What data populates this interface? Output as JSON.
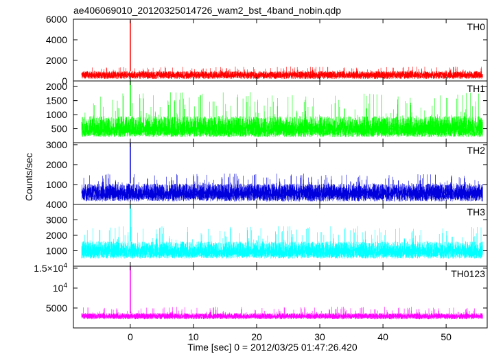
{
  "title": "ae406069010_20120325014726_wam2_bst_4band_nobin.qdp",
  "ylabel": "Counts/sec",
  "xlabel": "Time [sec] 0 = 2012/03/25 01:47:26.420",
  "chart_data": {
    "type": "line",
    "title": "ae406069010_20120325014726_wam2_bst_4band_nobin.qdp",
    "xlabel": "Time [sec] 0 = 2012/03/25 01:47:26.420",
    "ylabel": "Counts/sec",
    "xlim": [
      -9,
      56.5
    ],
    "x_ticks": [
      0,
      10,
      20,
      30,
      40,
      50
    ],
    "x_tick_labels": [
      "0",
      "10",
      "20",
      "30",
      "40",
      "50"
    ],
    "data_range": [
      -7.7,
      55.8
    ],
    "burst_time": 0,
    "grid": false,
    "panels": [
      {
        "name": "TH0",
        "color": "#ff0000",
        "ylim": [
          0,
          6000
        ],
        "y_ticks": [
          0,
          2000,
          4000,
          6000
        ],
        "y_tick_labels": [
          "0",
          "2000",
          "4000",
          "6000"
        ],
        "noise": {
          "low": 200,
          "typ_low": 450,
          "typ_high": 950,
          "high": 1400
        },
        "burst_peak": 5900
      },
      {
        "name": "TH1",
        "color": "#00ff00",
        "ylim": [
          0,
          2200
        ],
        "y_ticks": [
          500,
          1000,
          1500,
          2000
        ],
        "y_tick_labels": [
          "500",
          "1000",
          "1500",
          "2000"
        ],
        "noise": {
          "low": 200,
          "typ_low": 300,
          "typ_high": 950,
          "high": 1800
        },
        "burst_peak": 2200
      },
      {
        "name": "TH2",
        "color": "#0000dd",
        "ylim": [
          0,
          3100
        ],
        "y_ticks": [
          1000,
          2000,
          3000
        ],
        "y_tick_labels": [
          "1000",
          "2000",
          "3000"
        ],
        "noise": {
          "low": 150,
          "typ_low": 400,
          "typ_high": 1050,
          "high": 1550
        },
        "burst_peak": 3100
      },
      {
        "name": "TH3",
        "color": "#00ffff",
        "ylim": [
          0,
          4000
        ],
        "y_ticks": [
          1000,
          2000,
          3000,
          4000
        ],
        "y_tick_labels": [
          "1000",
          "2000",
          "3000",
          "4000"
        ],
        "noise": {
          "low": 500,
          "typ_low": 700,
          "typ_high": 1600,
          "high": 2600
        },
        "burst_peak": 4000
      },
      {
        "name": "TH0123",
        "color": "#ff00ff",
        "ylim": [
          0,
          15500
        ],
        "y_ticks": [
          5000,
          10000,
          15000
        ],
        "y_tick_labels": [
          "5000",
          "10^4",
          "1.5×10^4"
        ],
        "noise": {
          "low": 2200,
          "typ_low": 2700,
          "typ_high": 3700,
          "high": 5300
        },
        "burst_peak": 15500
      }
    ]
  }
}
